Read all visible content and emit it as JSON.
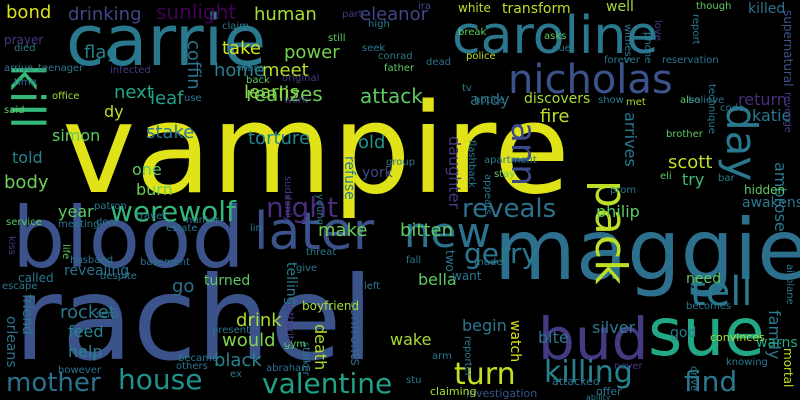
{
  "words": [
    {
      "text": "vampire",
      "color": "#dfe318"
    },
    {
      "text": "rachel",
      "color": "#3b528b"
    },
    {
      "text": "carrie",
      "color": "#2a788e"
    },
    {
      "text": "maggie",
      "color": "#2d708e"
    },
    {
      "text": "blood",
      "color": "#3b528b"
    },
    {
      "text": "caroline",
      "color": "#2a788e"
    },
    {
      "text": "sue",
      "color": "#22a884"
    },
    {
      "text": "bud",
      "color": "#443983"
    },
    {
      "text": "nicholas",
      "color": "#3b528b"
    },
    {
      "text": "later",
      "color": "#3b528b"
    },
    {
      "text": "kill",
      "color": "#35b779"
    },
    {
      "text": "new",
      "color": "#2c728e"
    },
    {
      "text": "day",
      "color": "#2a788e"
    },
    {
      "text": "tell",
      "color": "#2a788e"
    },
    {
      "text": "pack",
      "color": "#bddf26"
    },
    {
      "text": "killing",
      "color": "#25858e"
    },
    {
      "text": "valentine",
      "color": "#1fa188"
    },
    {
      "text": "house",
      "color": "#21918c"
    },
    {
      "text": "ann",
      "color": "#3e4989"
    },
    {
      "text": "werewolf",
      "color": "#35b779"
    },
    {
      "text": "turn",
      "color": "#c2df23"
    },
    {
      "text": "mother",
      "color": "#2c728e"
    },
    {
      "text": "find",
      "color": "#2a788e"
    },
    {
      "text": "gerry",
      "color": "#2a788e"
    },
    {
      "text": "reveals",
      "color": "#2c728e"
    },
    {
      "text": "night",
      "color": "#472d7b"
    },
    {
      "text": "sunlight",
      "color": "#440154"
    },
    {
      "text": "drinking",
      "color": "#404688"
    },
    {
      "text": "human",
      "color": "#a8db34"
    },
    {
      "text": "eleanor",
      "color": "#404688"
    },
    {
      "text": "realizes",
      "color": "#6ece58"
    },
    {
      "text": "attack",
      "color": "#5ec962"
    },
    {
      "text": "power",
      "color": "#75d054"
    },
    {
      "text": "meet",
      "color": "#b5de2b"
    },
    {
      "text": "learns",
      "color": "#8fd744"
    },
    {
      "text": "home",
      "color": "#26828e"
    },
    {
      "text": "coffin",
      "color": "#2c728e"
    },
    {
      "text": "take",
      "color": "#d2e21b"
    },
    {
      "text": "leaf",
      "color": "#1fa188"
    },
    {
      "text": "next",
      "color": "#22a884"
    },
    {
      "text": "flag",
      "color": "#27808e"
    },
    {
      "text": "bond",
      "color": "#d8e219"
    },
    {
      "text": "prayer",
      "color": "#443983"
    },
    {
      "text": "andy",
      "color": "#30697e"
    },
    {
      "text": "return",
      "color": "#472f7d"
    },
    {
      "text": "katie",
      "color": "#2a788e"
    },
    {
      "text": "dy",
      "color": "#bddf26"
    },
    {
      "text": "torture",
      "color": "#25858e"
    },
    {
      "text": "old",
      "color": "#20928c"
    },
    {
      "text": "fire",
      "color": "#b8de29"
    },
    {
      "text": "daughter",
      "color": "#443983"
    },
    {
      "text": "arrives",
      "color": "#2a788e"
    },
    {
      "text": "scott",
      "color": "#bddf26"
    },
    {
      "text": "try",
      "color": "#3dbc74"
    },
    {
      "text": "ambrose",
      "color": "#2a788e"
    },
    {
      "text": "philip",
      "color": "#5ec962"
    },
    {
      "text": "simon",
      "color": "#5ec962"
    },
    {
      "text": "told",
      "color": "#26828e"
    },
    {
      "text": "body",
      "color": "#6ece58"
    },
    {
      "text": "stake",
      "color": "#2a788e"
    },
    {
      "text": "one",
      "color": "#5ec962"
    },
    {
      "text": "burn",
      "color": "#6ece58"
    },
    {
      "text": "refuse",
      "color": "#29798e"
    },
    {
      "text": "york",
      "color": "#3e4989"
    },
    {
      "text": "bitten",
      "color": "#5ec962"
    },
    {
      "text": "make",
      "color": "#6ece58"
    },
    {
      "text": "year",
      "color": "#5ec962"
    },
    {
      "text": "black",
      "color": "#25858e"
    },
    {
      "text": "drink",
      "color": "#a8db34"
    },
    {
      "text": "would",
      "color": "#7fd34e"
    },
    {
      "text": "go",
      "color": "#2c728e"
    },
    {
      "text": "rocket",
      "color": "#2a788e"
    },
    {
      "text": "feed",
      "color": "#25858e"
    },
    {
      "text": "help",
      "color": "#25858e"
    },
    {
      "text": "friend",
      "color": "#2a788e"
    },
    {
      "text": "orleans",
      "color": "#2c728e"
    },
    {
      "text": "bella",
      "color": "#5ec962"
    },
    {
      "text": "begin",
      "color": "#2a788e"
    },
    {
      "text": "bite",
      "color": "#2a788e"
    },
    {
      "text": "silver",
      "color": "#2a788e"
    },
    {
      "text": "god",
      "color": "#2a788e"
    },
    {
      "text": "watch",
      "color": "#d8e219"
    },
    {
      "text": "wake",
      "color": "#a5db36"
    },
    {
      "text": "death",
      "color": "#b0dd2f"
    },
    {
      "text": "confronts",
      "color": "#31678e"
    },
    {
      "text": "family",
      "color": "#2a788e"
    },
    {
      "text": "warns",
      "color": "#22a884"
    },
    {
      "text": "mortal",
      "color": "#c8e020"
    },
    {
      "text": "revealing",
      "color": "#2c728e"
    },
    {
      "text": "called",
      "color": "#2a788e"
    },
    {
      "text": "turned",
      "color": "#5ec962"
    },
    {
      "text": "boyfriend",
      "color": "#a8db34"
    },
    {
      "text": "telling",
      "color": "#2a788e"
    },
    {
      "text": "need",
      "color": "#5ec962"
    },
    {
      "text": "discovers",
      "color": "#a8db34"
    },
    {
      "text": "transform",
      "color": "#bddf26"
    },
    {
      "text": "well",
      "color": "#a8db34"
    },
    {
      "text": "killed",
      "color": "#2c728e"
    },
    {
      "text": "supernatural",
      "color": "#39568c"
    },
    {
      "text": "revenge",
      "color": "#443983"
    },
    {
      "text": "awakens",
      "color": "#2a788e"
    },
    {
      "text": "hidden",
      "color": "#5ec962"
    },
    {
      "text": "white",
      "color": "#bddf26"
    },
    {
      "text": "two",
      "color": "#2a788e"
    },
    {
      "text": "want",
      "color": "#2c728e"
    },
    {
      "text": "attacked",
      "color": "#2c728e"
    },
    {
      "text": "convinces",
      "color": "#a8db34"
    },
    {
      "text": "investigation",
      "color": "#39568c"
    },
    {
      "text": "claiming",
      "color": "#a8db34"
    },
    {
      "text": "offer",
      "color": "#2a788e"
    },
    {
      "text": "however",
      "color": "#2c728e"
    },
    {
      "text": "others",
      "color": "#2c728e"
    },
    {
      "text": "stalker",
      "color": "#2a788e"
    },
    {
      "text": "abraham",
      "color": "#2c728e"
    },
    {
      "text": "gym",
      "color": "#5ec962"
    },
    {
      "text": "basement",
      "color": "#2c728e"
    },
    {
      "text": "claim",
      "color": "#2a788e"
    },
    {
      "text": "infected",
      "color": "#443983"
    },
    {
      "text": "died",
      "color": "#2a788e"
    },
    {
      "text": "still",
      "color": "#5ec962"
    },
    {
      "text": "seek",
      "color": "#2a788e"
    },
    {
      "text": "conrad",
      "color": "#2a788e"
    },
    {
      "text": "father",
      "color": "#5ec962"
    },
    {
      "text": "police",
      "color": "#bddf26"
    },
    {
      "text": "dead",
      "color": "#2c728e"
    },
    {
      "text": "notice",
      "color": "#2a788e"
    },
    {
      "text": "high",
      "color": "#2a788e"
    },
    {
      "text": "ira",
      "color": "#3e4989"
    },
    {
      "text": "part",
      "color": "#443983"
    },
    {
      "text": "break",
      "color": "#5ec962"
    },
    {
      "text": "asks",
      "color": "#5ec962"
    },
    {
      "text": "due",
      "color": "#2a788e"
    },
    {
      "text": "forever",
      "color": "#2a788e"
    },
    {
      "text": "reservation",
      "color": "#2a788e"
    },
    {
      "text": "love",
      "color": "#443983"
    },
    {
      "text": "report",
      "color": "#2a788e"
    },
    {
      "text": "witness",
      "color": "#2a788e"
    },
    {
      "text": "phone",
      "color": "#2a788e"
    },
    {
      "text": "though",
      "color": "#5ec962"
    },
    {
      "text": "met",
      "color": "#a8db34"
    },
    {
      "text": "also",
      "color": "#5ec962"
    },
    {
      "text": "believe",
      "color": "#2a788e"
    },
    {
      "text": "code",
      "color": "#2a788e"
    },
    {
      "text": "technique",
      "color": "#2a788e"
    },
    {
      "text": "brother",
      "color": "#5ec962"
    },
    {
      "text": "bar",
      "color": "#2a788e"
    },
    {
      "text": "eli",
      "color": "#5ec962"
    },
    {
      "text": "prom",
      "color": "#2a788e"
    },
    {
      "text": "show",
      "color": "#2a788e"
    },
    {
      "text": "stay",
      "color": "#5ec962"
    },
    {
      "text": "apartment",
      "color": "#2a788e"
    },
    {
      "text": "group",
      "color": "#2a788e"
    },
    {
      "text": "flashback",
      "color": "#2a788e"
    },
    {
      "text": "airplane",
      "color": "#2a788e"
    },
    {
      "text": "becomes",
      "color": "#2a788e"
    },
    {
      "text": "knowing",
      "color": "#2a788e"
    },
    {
      "text": "drive",
      "color": "#2a788e"
    },
    {
      "text": "never",
      "color": "#443983"
    },
    {
      "text": "arm",
      "color": "#2a788e"
    },
    {
      "text": "reporter",
      "color": "#2a788e"
    },
    {
      "text": "made",
      "color": "#2a788e"
    },
    {
      "text": "left",
      "color": "#2a788e"
    },
    {
      "text": "fall",
      "color": "#2a788e"
    },
    {
      "text": "threat",
      "color": "#2a788e"
    },
    {
      "text": "give",
      "color": "#2a788e"
    },
    {
      "text": "despite",
      "color": "#2a788e"
    },
    {
      "text": "husband",
      "color": "#2a788e"
    },
    {
      "text": "life",
      "color": "#5ec962"
    },
    {
      "text": "meeting",
      "color": "#2a788e"
    },
    {
      "text": "service",
      "color": "#5ec962"
    },
    {
      "text": "escape",
      "color": "#2a788e"
    },
    {
      "text": "kiss",
      "color": "#443983"
    },
    {
      "text": "office",
      "color": "#a8db34"
    },
    {
      "text": "said",
      "color": "#5ec962"
    },
    {
      "text": "arrive",
      "color": "#2a788e"
    },
    {
      "text": "time",
      "color": "#2a788e"
    },
    {
      "text": "teenager",
      "color": "#2a788e"
    },
    {
      "text": "patron",
      "color": "#2a788e"
    },
    {
      "text": "door",
      "color": "#2a788e"
    },
    {
      "text": "estate",
      "color": "#2a788e"
    },
    {
      "text": "travel",
      "color": "#2a788e"
    },
    {
      "text": "hunter",
      "color": "#2a788e"
    },
    {
      "text": "young",
      "color": "#2a788e"
    },
    {
      "text": "suddenly",
      "color": "#443983"
    },
    {
      "text": "lin",
      "color": "#2a788e"
    },
    {
      "text": "work",
      "color": "#443983"
    },
    {
      "text": "original",
      "color": "#443983"
    },
    {
      "text": "back",
      "color": "#5ec962"
    },
    {
      "text": "share",
      "color": "#2a788e"
    },
    {
      "text": "use",
      "color": "#2a788e"
    },
    {
      "text": "tv",
      "color": "#2a788e"
    },
    {
      "text": "present",
      "color": "#2a788e"
    },
    {
      "text": "became",
      "color": "#2a788e"
    },
    {
      "text": "authority",
      "color": "#443983"
    },
    {
      "text": "ex",
      "color": "#2a788e"
    },
    {
      "text": "sens",
      "color": "#2a788e"
    },
    {
      "text": "appears",
      "color": "#2a788e"
    },
    {
      "text": "stu",
      "color": "#2a788e"
    },
    {
      "text": "ability",
      "color": "#2a788e"
    }
  ]
}
